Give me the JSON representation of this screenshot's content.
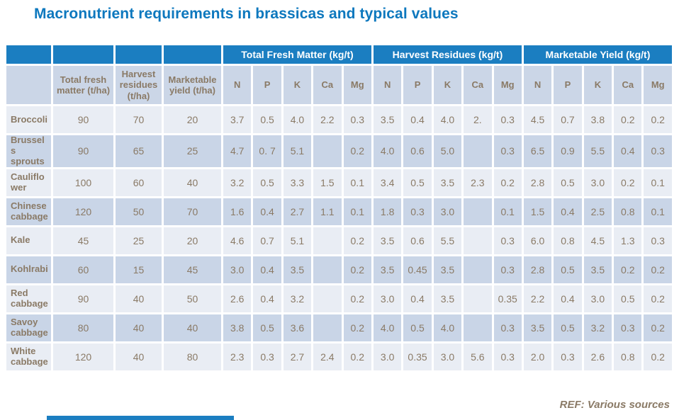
{
  "page": {
    "title": "Macronutrient requirements in brassicas and typical values",
    "ref_note": "REF: Various sources"
  },
  "colors": {
    "header_blue": "#1b7ec1",
    "title_blue": "#0d78be",
    "text_brown": "#8a7a66",
    "row_light": "#e9edf4",
    "row_dark": "#c9d5e7"
  },
  "table": {
    "pre_headers": [
      "Total fresh matter (t/ha)",
      "Harvest residues (t/ha)",
      "Marketable yield (t/ha)"
    ],
    "groups": [
      {
        "label": "Total Fresh Matter (kg/t)",
        "subs": [
          "N",
          "P",
          "K",
          "Ca",
          "Mg"
        ]
      },
      {
        "label": "Harvest Residues (kg/t)",
        "subs": [
          "N",
          "P",
          "K",
          "Ca",
          "Mg"
        ]
      },
      {
        "label": "Marketable Yield (kg/t)",
        "subs": [
          "N",
          "P",
          "K",
          "Ca",
          "Mg"
        ]
      }
    ],
    "rows": [
      {
        "label": "Broccoli",
        "values": [
          "90",
          "70",
          "20",
          "3.7",
          "0.5",
          "4.0",
          "2.2",
          "0.3",
          "3.5",
          "0.4",
          "4.0",
          "2.",
          "0.3",
          "4.5",
          "0.7",
          "3.8",
          "0.2",
          "0.2"
        ]
      },
      {
        "label": "Brussels sprouts",
        "values": [
          "90",
          "65",
          "25",
          "4.7",
          "0. 7",
          "5.1",
          "",
          "0.2",
          "4.0",
          "0.6",
          "5.0",
          "",
          "0.3",
          "6.5",
          "0.9",
          "5.5",
          "0.4",
          "0.3"
        ]
      },
      {
        "label": "Cauliflower",
        "values": [
          "100",
          "60",
          "40",
          "3.2",
          "0.5",
          "3.3",
          "1.5",
          "0.1",
          "3.4",
          "0.5",
          "3.5",
          "2.3",
          "0.2",
          "2.8",
          "0.5",
          "3.0",
          "0.2",
          "0.1"
        ]
      },
      {
        "label": "Chinese cabbage",
        "values": [
          "120",
          "50",
          "70",
          "1.6",
          "0.4",
          "2.7",
          "1.1",
          "0.1",
          "1.8",
          "0.3",
          "3.0",
          "",
          "0.1",
          "1.5",
          "0.4",
          "2.5",
          "0.8",
          "0.1"
        ]
      },
      {
        "label": "Kale",
        "values": [
          "45",
          "25",
          "20",
          "4.6",
          "0.7",
          "5.1",
          "",
          "0.2",
          "3.5",
          "0.6",
          "5.5",
          "",
          "0.3",
          "6.0",
          "0.8",
          "4.5",
          "1.3",
          "0.3"
        ]
      },
      {
        "label": "Kohlrabi",
        "values": [
          "60",
          "15",
          "45",
          "3.0",
          "0.4",
          "3.5",
          "",
          "0.2",
          "3.5",
          "0.45",
          "3.5",
          "",
          "0.3",
          "2.8",
          "0.5",
          "3.5",
          "0.2",
          "0.2"
        ]
      },
      {
        "label": "Red cabbage",
        "values": [
          "90",
          "40",
          "50",
          "2.6",
          "0.4",
          "3.2",
          "",
          "0.2",
          "3.0",
          "0.4",
          "3.5",
          "",
          "0.35",
          "2.2",
          "0.4",
          "3.0",
          "0.5",
          "0.2"
        ]
      },
      {
        "label": "Savoy cabbage",
        "values": [
          "80",
          "40",
          "40",
          "3.8",
          "0.5",
          "3.6",
          "",
          "0.2",
          "4.0",
          "0.5",
          "4.0",
          "",
          "0.3",
          "3.5",
          "0.5",
          "3.2",
          "0.3",
          "0.2"
        ]
      },
      {
        "label": "White cabbage",
        "values": [
          "120",
          "40",
          "80",
          "2.3",
          "0.3",
          "2.7",
          "2.4",
          "0.2",
          "3.0",
          "0.35",
          "3.0",
          "5.6",
          "0.3",
          "2.0",
          "0.3",
          "2.6",
          "0.8",
          "0.2"
        ]
      }
    ]
  }
}
